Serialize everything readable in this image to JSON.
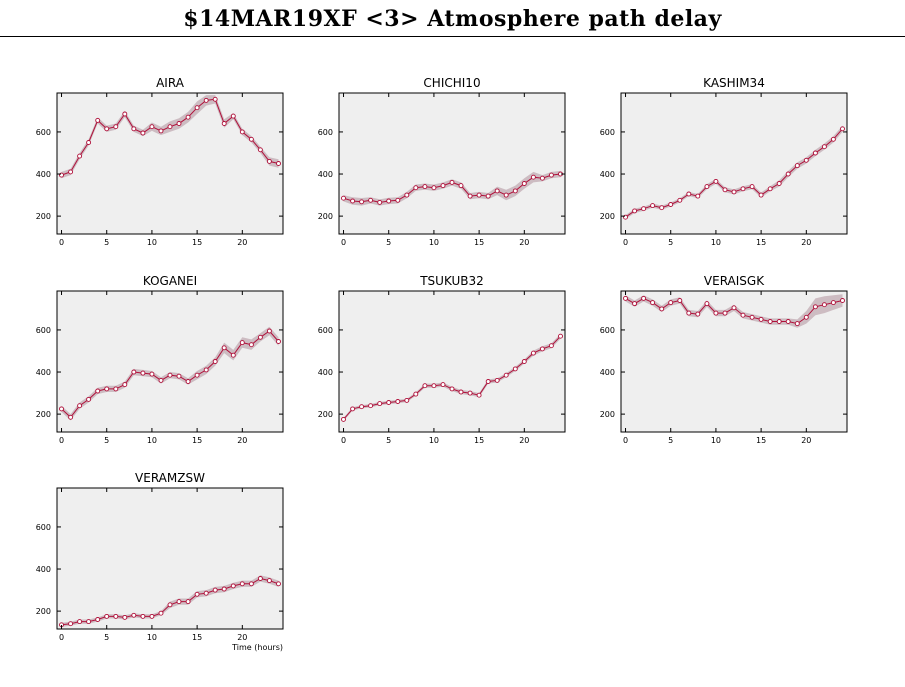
{
  "header": {
    "title": "$14MAR19XF <3>  Atmosphere path delay"
  },
  "colors": {
    "line": "#b0103a",
    "band": "#cdbcc2",
    "plot_bg": "#efefef",
    "marker_fill": "#ffffff"
  },
  "chart_data": [
    {
      "type": "line",
      "title": "AIRA",
      "xlabel": "",
      "xlim": [
        -0.5,
        24.5
      ],
      "ylim": [
        115,
        785
      ],
      "xticks": [
        0,
        5,
        10,
        15,
        20
      ],
      "yticks": [
        200,
        400,
        600
      ],
      "x": [
        0,
        1,
        2,
        3,
        4,
        5,
        6,
        7,
        8,
        9,
        10,
        11,
        12,
        13,
        14,
        15,
        16,
        17,
        18,
        19,
        20,
        21,
        22,
        23,
        24
      ],
      "values": [
        395,
        410,
        485,
        550,
        655,
        615,
        625,
        685,
        615,
        595,
        625,
        605,
        625,
        640,
        670,
        715,
        750,
        755,
        640,
        675,
        600,
        565,
        515,
        460,
        450
      ],
      "band": [
        15,
        15,
        15,
        15,
        15,
        15,
        15,
        15,
        15,
        15,
        20,
        20,
        25,
        25,
        25,
        30,
        25,
        20,
        20,
        15,
        15,
        15,
        15,
        20,
        20
      ]
    },
    {
      "type": "line",
      "title": "CHICHI10",
      "xlabel": "",
      "xlim": [
        -0.5,
        24.5
      ],
      "ylim": [
        115,
        785
      ],
      "xticks": [
        0,
        5,
        10,
        15,
        20
      ],
      "yticks": [
        200,
        400,
        600
      ],
      "x": [
        0,
        1,
        2,
        3,
        4,
        5,
        6,
        7,
        8,
        9,
        10,
        11,
        12,
        13,
        14,
        15,
        16,
        17,
        18,
        19,
        20,
        21,
        22,
        23,
        24
      ],
      "values": [
        285,
        272,
        268,
        275,
        265,
        272,
        275,
        300,
        335,
        340,
        335,
        345,
        360,
        345,
        295,
        300,
        295,
        320,
        300,
        320,
        355,
        385,
        380,
        395,
        400
      ],
      "band": [
        15,
        18,
        18,
        15,
        15,
        15,
        15,
        15,
        15,
        15,
        15,
        15,
        15,
        15,
        15,
        15,
        15,
        20,
        25,
        25,
        25,
        25,
        15,
        15,
        15
      ]
    },
    {
      "type": "line",
      "title": "KASHIM34",
      "xlabel": "",
      "xlim": [
        -0.5,
        24.5
      ],
      "ylim": [
        115,
        785
      ],
      "xticks": [
        0,
        5,
        10,
        15,
        20
      ],
      "yticks": [
        200,
        400,
        600
      ],
      "x": [
        0,
        1,
        2,
        3,
        4,
        5,
        6,
        7,
        8,
        9,
        10,
        11,
        12,
        13,
        14,
        15,
        16,
        17,
        18,
        19,
        20,
        21,
        22,
        23,
        24
      ],
      "values": [
        195,
        225,
        235,
        250,
        240,
        255,
        275,
        305,
        295,
        340,
        365,
        325,
        315,
        330,
        340,
        300,
        330,
        355,
        400,
        440,
        465,
        500,
        530,
        565,
        615
      ],
      "band": [
        10,
        10,
        10,
        10,
        10,
        10,
        10,
        10,
        10,
        12,
        12,
        12,
        12,
        12,
        12,
        12,
        12,
        15,
        15,
        15,
        15,
        15,
        15,
        15,
        15
      ]
    },
    {
      "type": "line",
      "title": "KOGANEI",
      "xlabel": "",
      "xlim": [
        -0.5,
        24.5
      ],
      "ylim": [
        115,
        785
      ],
      "xticks": [
        0,
        5,
        10,
        15,
        20
      ],
      "yticks": [
        200,
        400,
        600
      ],
      "x": [
        0,
        1,
        2,
        3,
        4,
        5,
        6,
        7,
        8,
        9,
        10,
        11,
        12,
        13,
        14,
        15,
        16,
        17,
        18,
        19,
        20,
        21,
        22,
        23,
        24
      ],
      "values": [
        225,
        185,
        240,
        270,
        310,
        320,
        320,
        340,
        400,
        395,
        390,
        360,
        385,
        380,
        355,
        385,
        410,
        450,
        515,
        480,
        540,
        530,
        565,
        595,
        545
      ],
      "band": [
        15,
        15,
        15,
        15,
        15,
        15,
        15,
        15,
        15,
        15,
        15,
        15,
        15,
        15,
        15,
        20,
        20,
        20,
        25,
        25,
        25,
        25,
        20,
        20,
        20
      ]
    },
    {
      "type": "line",
      "title": "TSUKUB32",
      "xlabel": "",
      "xlim": [
        -0.5,
        24.5
      ],
      "ylim": [
        115,
        785
      ],
      "xticks": [
        0,
        5,
        10,
        15,
        20
      ],
      "yticks": [
        200,
        400,
        600
      ],
      "x": [
        0,
        1,
        2,
        3,
        4,
        5,
        6,
        7,
        8,
        9,
        10,
        11,
        12,
        13,
        14,
        15,
        16,
        17,
        18,
        19,
        20,
        21,
        22,
        23,
        24
      ],
      "values": [
        175,
        225,
        235,
        240,
        250,
        255,
        260,
        265,
        295,
        335,
        335,
        340,
        320,
        305,
        300,
        290,
        355,
        360,
        385,
        415,
        450,
        490,
        510,
        525,
        570
      ],
      "band": [
        8,
        8,
        8,
        8,
        8,
        8,
        8,
        8,
        8,
        10,
        10,
        10,
        10,
        10,
        10,
        10,
        10,
        10,
        10,
        10,
        10,
        12,
        12,
        12,
        12
      ]
    },
    {
      "type": "line",
      "title": "VERAISGK",
      "xlabel": "",
      "xlim": [
        -0.5,
        24.5
      ],
      "ylim": [
        115,
        785
      ],
      "xticks": [
        0,
        5,
        10,
        15,
        20
      ],
      "yticks": [
        200,
        400,
        600
      ],
      "x": [
        0,
        1,
        2,
        3,
        4,
        5,
        6,
        7,
        8,
        9,
        10,
        11,
        12,
        13,
        14,
        15,
        16,
        17,
        18,
        19,
        20,
        21,
        22,
        23,
        24
      ],
      "values": [
        750,
        725,
        750,
        730,
        700,
        730,
        740,
        680,
        675,
        725,
        680,
        680,
        705,
        670,
        660,
        650,
        640,
        640,
        640,
        630,
        660,
        710,
        720,
        730,
        740
      ],
      "band": [
        15,
        15,
        15,
        15,
        15,
        15,
        15,
        15,
        15,
        15,
        15,
        15,
        15,
        15,
        15,
        15,
        15,
        15,
        15,
        20,
        30,
        40,
        40,
        35,
        30
      ]
    },
    {
      "type": "line",
      "title": "VERAMZSW",
      "xlabel": "Time (hours)",
      "xlim": [
        -0.5,
        24.5
      ],
      "ylim": [
        115,
        785
      ],
      "xticks": [
        0,
        5,
        10,
        15,
        20
      ],
      "yticks": [
        200,
        400,
        600
      ],
      "x": [
        0,
        1,
        2,
        3,
        4,
        5,
        6,
        7,
        8,
        9,
        10,
        11,
        12,
        13,
        14,
        15,
        16,
        17,
        18,
        19,
        20,
        21,
        22,
        23,
        24
      ],
      "values": [
        135,
        140,
        150,
        150,
        160,
        175,
        175,
        170,
        180,
        175,
        175,
        190,
        230,
        245,
        245,
        280,
        285,
        300,
        305,
        320,
        330,
        330,
        355,
        345,
        330
      ],
      "band": [
        10,
        10,
        10,
        10,
        10,
        10,
        10,
        10,
        10,
        10,
        10,
        10,
        15,
        15,
        15,
        15,
        15,
        15,
        15,
        15,
        15,
        15,
        15,
        15,
        15
      ]
    }
  ]
}
